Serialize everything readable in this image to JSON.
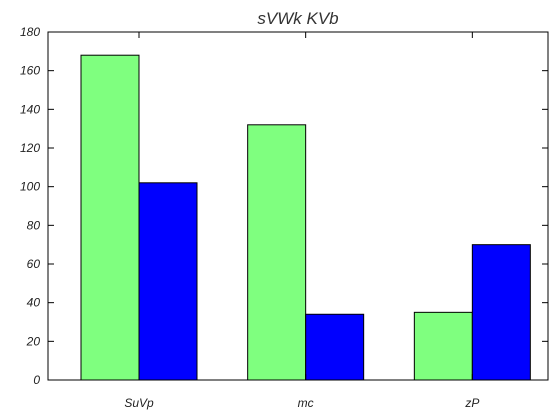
{
  "chart_data": {
    "type": "bar",
    "title": "sVWk  KVb",
    "xlabel": "",
    "ylabel": "",
    "categories": [
      "SuVp",
      "mc",
      "zP"
    ],
    "series": [
      {
        "values": [
          168,
          132,
          35
        ],
        "color": "#7fff7f"
      },
      {
        "values": [
          102,
          34,
          70
        ],
        "color": "#0000ff"
      }
    ],
    "ylim": [
      0,
      180
    ],
    "yticks": [
      0,
      20,
      40,
      60,
      80,
      100,
      120,
      140,
      160,
      180
    ],
    "grid": false,
    "legend": "none"
  }
}
